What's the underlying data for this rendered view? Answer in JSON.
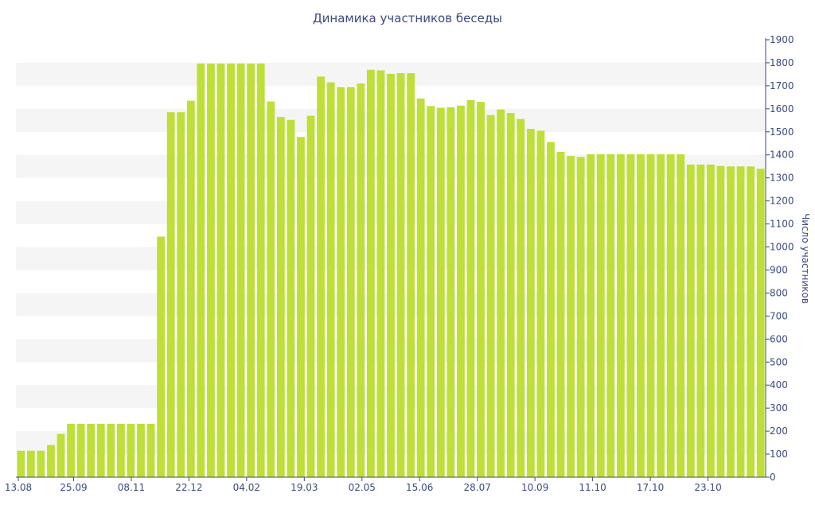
{
  "chart_data": {
    "type": "bar",
    "title": "Динамика участников беседы",
    "xlabel": "",
    "ylabel": "Число участников",
    "ylim": [
      0,
      1900
    ],
    "y_ticks": [
      0,
      100,
      200,
      300,
      400,
      500,
      600,
      700,
      800,
      900,
      1000,
      1100,
      1200,
      1300,
      1400,
      1500,
      1600,
      1700,
      1800,
      1900
    ],
    "x_tick_labels": [
      "13.08",
      "25.09",
      "08.11",
      "22.12",
      "04.02",
      "19.03",
      "02.05",
      "15.06",
      "28.07",
      "10.09",
      "11.10",
      "17.10",
      "23.10"
    ],
    "y_axis_position": "right",
    "grid": "alternating horizontal bands",
    "bar_color": "#bddf37",
    "band_color": "#f5f5f5",
    "text_color": "#3b4a82",
    "values": [
      115,
      115,
      115,
      140,
      188,
      232,
      232,
      232,
      232,
      232,
      232,
      232,
      232,
      232,
      1045,
      1585,
      1585,
      1635,
      1797,
      1797,
      1797,
      1797,
      1797,
      1797,
      1797,
      1632,
      1565,
      1552,
      1478,
      1570,
      1740,
      1715,
      1695,
      1695,
      1710,
      1770,
      1767,
      1752,
      1755,
      1755,
      1645,
      1612,
      1605,
      1607,
      1614,
      1638,
      1630,
      1573,
      1597,
      1582,
      1556,
      1513,
      1505,
      1456,
      1413,
      1395,
      1391,
      1403,
      1403,
      1403,
      1403,
      1403,
      1403,
      1403,
      1403,
      1403,
      1403,
      1358,
      1358,
      1358,
      1352,
      1350,
      1350,
      1350,
      1340
    ]
  }
}
